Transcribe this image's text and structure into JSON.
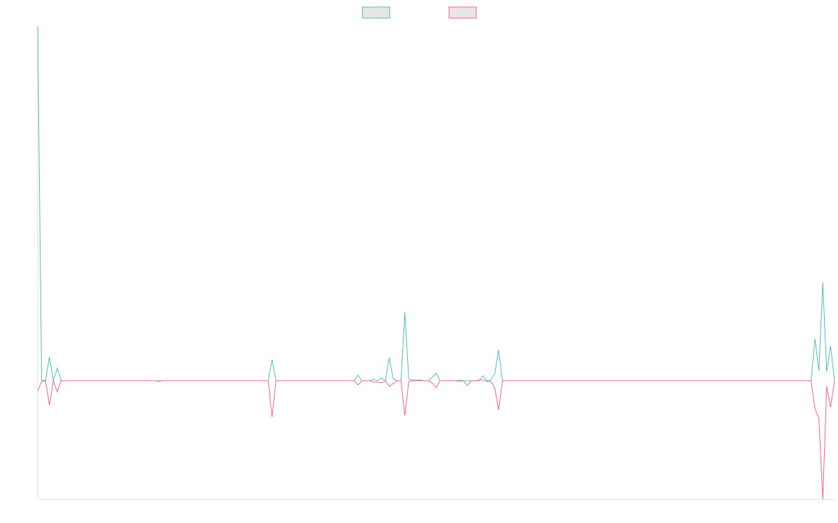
{
  "chart_data": {
    "type": "line",
    "ylim": [
      -170,
      509
    ],
    "grid": false,
    "legend": "top",
    "series": [
      {
        "color": "#4bc0c0",
        "values": [
          509,
          1,
          0,
          34,
          0,
          18,
          0,
          0,
          0,
          0,
          0,
          0,
          0,
          0,
          0,
          0,
          0,
          0,
          0,
          0,
          0,
          0,
          0,
          0,
          0,
          0,
          0,
          0,
          0,
          0,
          0,
          0,
          0,
          0,
          0,
          0,
          0,
          0,
          0,
          0,
          0,
          0,
          0,
          0,
          0,
          0,
          0,
          0,
          0,
          0,
          0,
          0,
          0,
          0,
          0,
          0,
          0,
          0,
          0,
          0,
          30,
          0,
          0,
          0,
          0,
          0,
          0,
          0,
          0,
          0,
          0,
          0,
          0,
          0,
          0,
          0,
          0,
          0,
          0,
          0,
          0,
          0,
          8,
          0,
          0,
          0,
          2,
          0,
          4,
          0,
          33,
          3,
          0,
          0,
          98,
          2,
          1,
          1,
          1,
          0,
          0,
          5,
          11,
          0,
          0,
          0,
          0,
          0,
          1,
          0,
          0,
          0,
          0,
          0,
          7,
          0,
          1,
          10,
          44,
          0,
          0,
          0,
          0,
          0,
          0,
          0,
          0,
          0,
          0,
          0,
          0,
          0,
          0,
          0,
          0,
          0,
          0,
          0,
          0,
          0,
          0,
          0,
          0,
          0,
          0,
          0,
          0,
          0,
          0,
          0,
          0,
          0,
          0,
          0,
          0,
          0,
          0,
          0,
          0,
          0,
          0,
          0,
          0,
          0,
          0,
          0,
          0,
          0,
          0,
          0,
          0,
          0,
          0,
          0,
          0,
          0,
          0,
          0,
          0,
          0,
          0,
          0,
          0,
          0,
          0,
          0,
          0,
          0,
          0,
          0,
          0,
          0,
          0,
          0,
          0,
          0,
          0,
          0,
          0,
          60,
          14,
          141,
          13,
          50,
          0
        ]
      },
      {
        "color": "#ff6384",
        "values": [
          -15,
          -1,
          0,
          -35,
          0,
          -16,
          0,
          0,
          0,
          0,
          0,
          0,
          0,
          0,
          0,
          0,
          0,
          0,
          0,
          0,
          0,
          0,
          0,
          0,
          0,
          0,
          0,
          0,
          0,
          0,
          0,
          -1,
          0,
          0,
          0,
          0,
          0,
          0,
          0,
          0,
          0,
          0,
          0,
          0,
          0,
          0,
          0,
          0,
          0,
          0,
          0,
          0,
          0,
          0,
          0,
          0,
          0,
          0,
          0,
          0,
          -52,
          0,
          0,
          0,
          0,
          0,
          0,
          0,
          0,
          0,
          0,
          0,
          0,
          0,
          0,
          0,
          0,
          0,
          0,
          0,
          0,
          0,
          -6,
          0,
          0,
          0,
          -2,
          -2,
          -3,
          0,
          -8,
          -4,
          0,
          0,
          -50,
          -1,
          0,
          0,
          0,
          0,
          0,
          -3,
          -10,
          0,
          0,
          0,
          0,
          0,
          -1,
          0,
          -7,
          0,
          0,
          1,
          1,
          -1,
          -1,
          -10,
          -42,
          0,
          0,
          0,
          0,
          0,
          0,
          0,
          0,
          0,
          0,
          0,
          0,
          0,
          0,
          0,
          0,
          0,
          0,
          0,
          0,
          0,
          0,
          0,
          0,
          0,
          0,
          0,
          0,
          0,
          0,
          0,
          0,
          0,
          0,
          0,
          0,
          0,
          0,
          0,
          0,
          0,
          0,
          0,
          0,
          0,
          0,
          0,
          0,
          0,
          0,
          0,
          0,
          0,
          0,
          0,
          0,
          0,
          0,
          0,
          0,
          0,
          0,
          0,
          0,
          0,
          0,
          0,
          0,
          0,
          0,
          0,
          0,
          0,
          0,
          0,
          0,
          0,
          0,
          0,
          0,
          -40,
          -54,
          -170,
          -8,
          -38,
          0
        ]
      }
    ]
  }
}
